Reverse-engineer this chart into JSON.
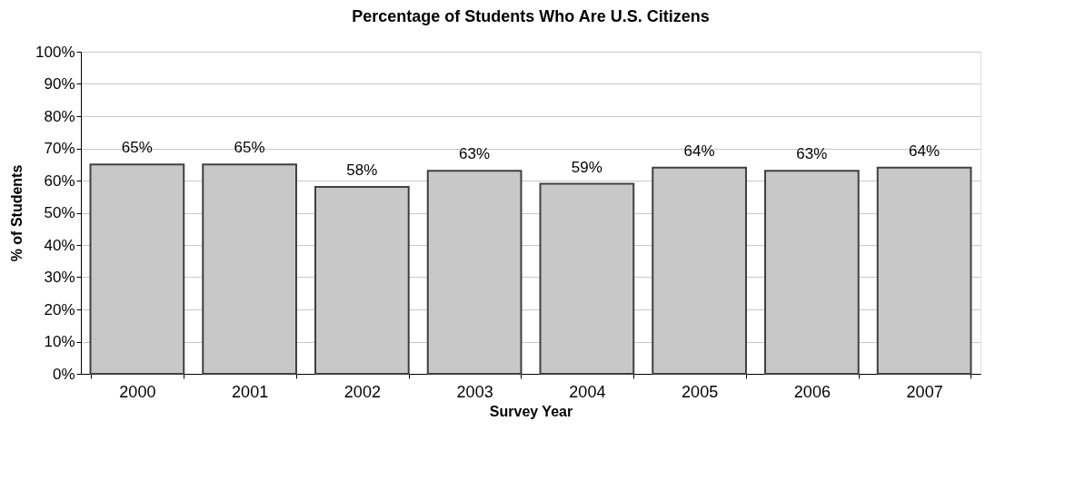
{
  "chart_data": {
    "type": "bar",
    "title": "Percentage of Students Who Are U.S. Citizens",
    "xlabel": "Survey Year",
    "ylabel": "% of Students",
    "categories": [
      "2000",
      "2001",
      "2002",
      "2003",
      "2004",
      "2005",
      "2006",
      "2007"
    ],
    "values": [
      65,
      65,
      58,
      63,
      59,
      64,
      63,
      64
    ],
    "value_labels": [
      "65%",
      "65%",
      "58%",
      "63%",
      "59%",
      "64%",
      "63%",
      "64%"
    ],
    "color": "#c8c8c8",
    "ylim": [
      0,
      100
    ],
    "yticks": [
      {
        "value": 0,
        "label": "0%"
      },
      {
        "value": 10,
        "label": "10%"
      },
      {
        "value": 20,
        "label": "20%"
      },
      {
        "value": 30,
        "label": "30%"
      },
      {
        "value": 40,
        "label": "40%"
      },
      {
        "value": 50,
        "label": "50%"
      },
      {
        "value": 60,
        "label": "60%"
      },
      {
        "value": 70,
        "label": "70%"
      },
      {
        "value": 80,
        "label": "80%"
      },
      {
        "value": 90,
        "label": "90%"
      },
      {
        "value": 100,
        "label": "100%"
      }
    ],
    "grid": "y"
  }
}
